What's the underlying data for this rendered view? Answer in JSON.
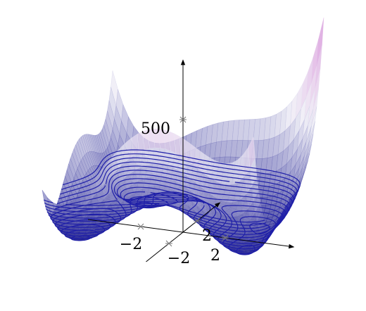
{
  "chart_data": {
    "type": "surface",
    "xlim": [
      -5,
      5
    ],
    "ylim": [
      -5,
      5
    ],
    "zlim": [
      0,
      900
    ],
    "xticks": [
      {
        "value": -2,
        "label": "−2"
      },
      {
        "value": 2,
        "label": "2"
      }
    ],
    "yticks": [
      {
        "value": -2,
        "label": "−2"
      },
      {
        "value": 2,
        "label": "2"
      }
    ],
    "zticks": [
      500
    ],
    "colormap": [
      "#1c1c8e",
      "#ecebf5",
      "#cf78cf"
    ],
    "contour_color": "#1e1ea8"
  }
}
